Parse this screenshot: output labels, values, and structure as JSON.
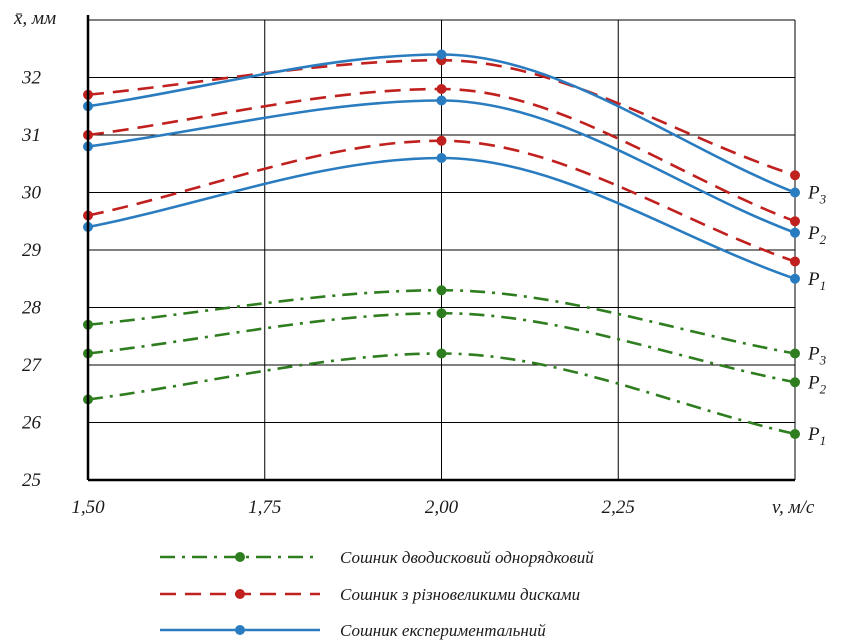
{
  "chart_data": {
    "type": "line",
    "ylabel": "x̄, мм",
    "xlabel": "v, м/с",
    "xlim": [
      1.5,
      2.5
    ],
    "ylim": [
      25,
      33
    ],
    "x_ticks": [
      "1,50",
      "1,75",
      "2,00",
      "2,25"
    ],
    "y_ticks": [
      "25",
      "26",
      "27",
      "28",
      "29",
      "30",
      "31",
      "32"
    ],
    "grid": true,
    "x": [
      1.5,
      2.0,
      2.5
    ],
    "groups": [
      {
        "legend": "Сошник дводисковий однорядковий",
        "color": "#2e7d1e",
        "dash": "dashdot",
        "series": [
          {
            "name": "P3",
            "values": [
              27.7,
              28.3,
              27.2
            ]
          },
          {
            "name": "P2",
            "values": [
              27.2,
              27.9,
              26.7
            ]
          },
          {
            "name": "P1",
            "values": [
              26.4,
              27.2,
              25.8
            ]
          }
        ]
      },
      {
        "legend": "Сошник з різновеликими дисками",
        "color": "#c0201e",
        "dash": "dashed",
        "series": [
          {
            "name": "P3",
            "values": [
              31.7,
              32.3,
              30.3
            ]
          },
          {
            "name": "P2",
            "values": [
              31.0,
              31.8,
              29.5
            ]
          },
          {
            "name": "P1",
            "values": [
              29.6,
              30.9,
              28.8
            ]
          }
        ]
      },
      {
        "legend": "Сошник експериментальний",
        "color": "#2a7cc0",
        "dash": "solid",
        "series": [
          {
            "name": "P3",
            "values": [
              31.5,
              32.4,
              30.0
            ]
          },
          {
            "name": "P2",
            "values": [
              30.8,
              31.6,
              29.3
            ]
          },
          {
            "name": "P1",
            "values": [
              29.4,
              30.6,
              28.5
            ]
          }
        ]
      }
    ],
    "right_labels": [
      {
        "main": "P",
        "sub": "3",
        "y": 30.0
      },
      {
        "main": "P",
        "sub": "2",
        "y": 29.3
      },
      {
        "main": "P",
        "sub": "1",
        "y": 28.5
      },
      {
        "main": "P",
        "sub": "3",
        "y": 27.2
      },
      {
        "main": "P",
        "sub": "2",
        "y": 26.7
      },
      {
        "main": "P",
        "sub": "1",
        "y": 25.8
      }
    ]
  }
}
